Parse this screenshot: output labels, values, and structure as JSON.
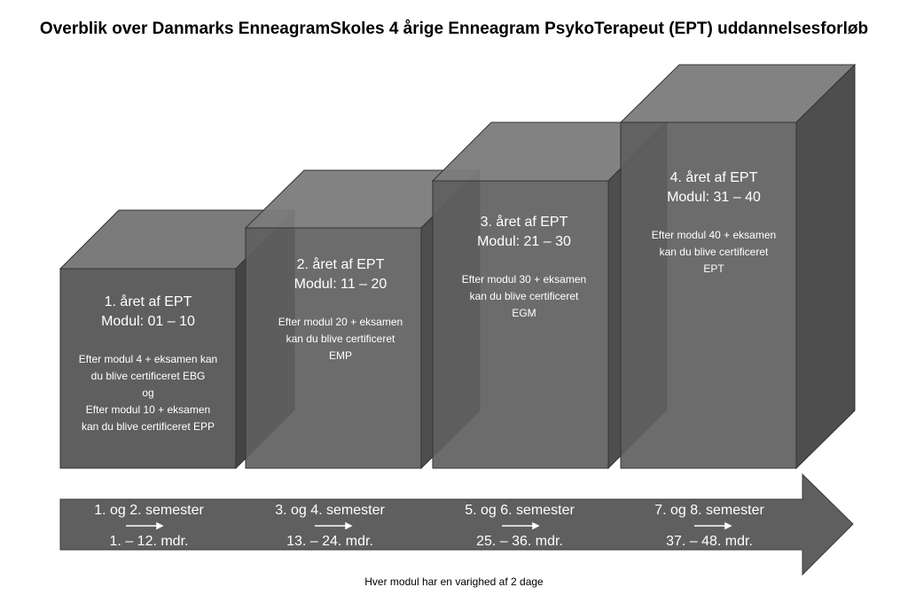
{
  "title": "Overblik over Danmarks EnneagramSkoles 4 årige Enneagram PsykoTerapeut (EPT) uddannelsesforløb",
  "years": [
    {
      "year_label": "1. året af EPT",
      "module_label": "Modul: 01 – 10",
      "description": [
        "Efter modul 4 + eksamen kan",
        "du blive certificeret EBG",
        "og",
        "Efter modul 10 + eksamen",
        "kan du blive certificeret EPP"
      ]
    },
    {
      "year_label": "2. året af EPT",
      "module_label": "Modul: 11 – 20",
      "description": [
        "Efter modul 20 + eksamen",
        "kan du blive certificeret",
        "EMP"
      ]
    },
    {
      "year_label": "3. året af EPT",
      "module_label": "Modul: 21 – 30",
      "description": [
        "Efter modul 30 + eksamen",
        "kan du blive certificeret",
        "EGM"
      ]
    },
    {
      "year_label": "4. året af EPT",
      "module_label": "Modul: 31 – 40",
      "description": [
        "Efter modul 40 + eksamen",
        "kan du blive certificeret",
        "EPT"
      ]
    }
  ],
  "timeline": [
    {
      "semester": "1. og 2. semester",
      "months": "1. – 12. mdr."
    },
    {
      "semester": "3. og 4. semester",
      "months": "13. – 24. mdr."
    },
    {
      "semester": "5. og 6. semester",
      "months": "25. – 36. mdr."
    },
    {
      "semester": "7. og 8. semester",
      "months": "37. – 48. mdr."
    }
  ],
  "footer": "Hver modul har en varighed af 2 dage",
  "colors": {
    "box_front": "#5f5f5f",
    "box_top": "#7b7b7b",
    "box_side": "#424242",
    "arrow": "#5f5f5f",
    "text": "#ffffff"
  }
}
